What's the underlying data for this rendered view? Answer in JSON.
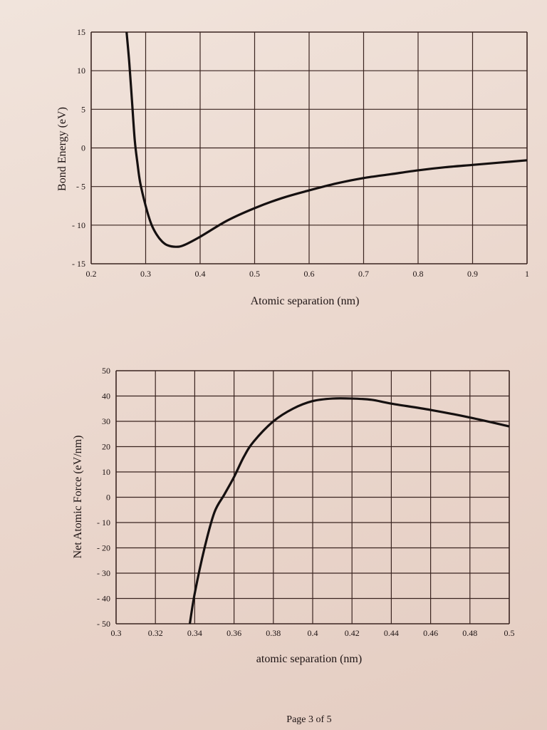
{
  "chart_data": [
    {
      "type": "line",
      "xlabel": "Atomic separation (nm)",
      "ylabel": "Bond Energy (eV)",
      "xlim": [
        0.2,
        1
      ],
      "ylim": [
        -15,
        15
      ],
      "xticks": [
        "0.2",
        "0.3",
        "0.4",
        "0.5",
        "0.6",
        "0.7",
        "0.8",
        "0.9",
        "1"
      ],
      "yticks": [
        "15",
        "10",
        "5",
        "0",
        "- 5",
        "- 10",
        "- 15"
      ],
      "grid": true,
      "x": [
        0.265,
        0.27,
        0.275,
        0.28,
        0.285,
        0.29,
        0.3,
        0.31,
        0.32,
        0.33,
        0.34,
        0.355,
        0.37,
        0.4,
        0.45,
        0.5,
        0.55,
        0.6,
        0.65,
        0.7,
        0.75,
        0.8,
        0.85,
        0.9,
        0.95,
        1.0
      ],
      "y": [
        15,
        11,
        6,
        1,
        -2,
        -4.5,
        -7.5,
        -9.8,
        -11.2,
        -12.1,
        -12.6,
        -12.8,
        -12.6,
        -11.5,
        -9.4,
        -7.8,
        -6.5,
        -5.5,
        -4.6,
        -3.9,
        -3.4,
        -2.9,
        -2.5,
        -2.2,
        -1.9,
        -1.6
      ]
    },
    {
      "type": "line",
      "xlabel": "atomic separation (nm)",
      "ylabel": "Net Atomic Force (eV/nm)",
      "xlim": [
        0.3,
        0.5
      ],
      "ylim": [
        -50,
        50
      ],
      "xticks": [
        "0.3",
        "0.32",
        "0.34",
        "0.36",
        "0.38",
        "0.4",
        "0.42",
        "0.44",
        "0.46",
        "0.48",
        "0.5"
      ],
      "yticks": [
        "50",
        "40",
        "30",
        "20",
        "10",
        "0",
        "- 10",
        "- 20",
        "- 30",
        "- 40",
        "- 50"
      ],
      "grid": true,
      "x": [
        0.3375,
        0.34,
        0.345,
        0.35,
        0.355,
        0.36,
        0.365,
        0.37,
        0.38,
        0.39,
        0.4,
        0.41,
        0.42,
        0.43,
        0.44,
        0.46,
        0.48,
        0.5
      ],
      "y": [
        -50,
        -38,
        -20,
        -6,
        1,
        8,
        16,
        22,
        30,
        35,
        38,
        39,
        39,
        38.5,
        37,
        34.5,
        31.5,
        28
      ]
    }
  ],
  "footer": {
    "page": "Page 3 of 5"
  },
  "colors": {
    "paper": "#ecdbd2",
    "ink": "#1e1414",
    "grid": "#3a2420"
  }
}
